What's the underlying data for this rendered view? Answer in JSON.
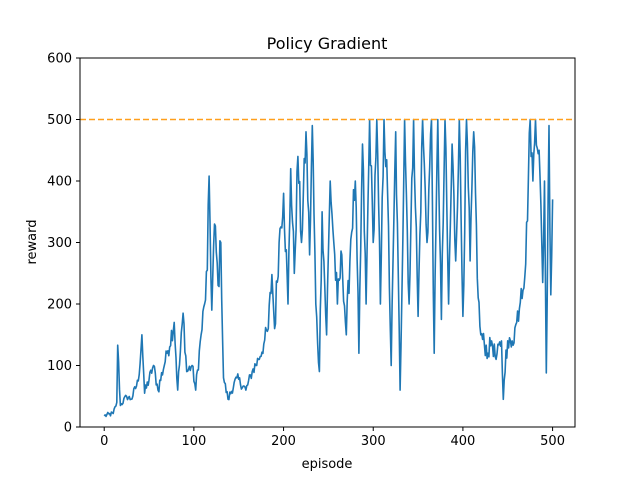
{
  "chart_data": {
    "type": "line",
    "title": "Policy Gradient",
    "xlabel": "episode",
    "ylabel": "reward",
    "xlim": [
      -27,
      525
    ],
    "ylim": [
      0,
      600
    ],
    "xticks": [
      0,
      100,
      200,
      300,
      400,
      500
    ],
    "yticks": [
      0,
      100,
      200,
      300,
      400,
      500,
      600
    ],
    "grid": false,
    "series": [
      {
        "color": "#1f77b4",
        "keypoints": [
          [
            0,
            18
          ],
          [
            10,
            22
          ],
          [
            14,
            40
          ],
          [
            15,
            133
          ],
          [
            18,
            35
          ],
          [
            25,
            50
          ],
          [
            30,
            45
          ],
          [
            38,
            75
          ],
          [
            42,
            150
          ],
          [
            45,
            55
          ],
          [
            55,
            100
          ],
          [
            60,
            60
          ],
          [
            70,
            120
          ],
          [
            78,
            170
          ],
          [
            82,
            60
          ],
          [
            88,
            185
          ],
          [
            92,
            90
          ],
          [
            98,
            100
          ],
          [
            102,
            60
          ],
          [
            108,
            150
          ],
          [
            112,
            200
          ],
          [
            115,
            255
          ],
          [
            117,
            408
          ],
          [
            120,
            190
          ],
          [
            123,
            330
          ],
          [
            127,
            230
          ],
          [
            130,
            300
          ],
          [
            133,
            80
          ],
          [
            138,
            45
          ],
          [
            148,
            80
          ],
          [
            158,
            60
          ],
          [
            165,
            90
          ],
          [
            172,
            110
          ],
          [
            178,
            135
          ],
          [
            183,
            160
          ],
          [
            187,
            248
          ],
          [
            190,
            160
          ],
          [
            195,
            300
          ],
          [
            200,
            380
          ],
          [
            205,
            200
          ],
          [
            208,
            420
          ],
          [
            212,
            250
          ],
          [
            216,
            440
          ],
          [
            220,
            300
          ],
          [
            225,
            480
          ],
          [
            229,
            280
          ],
          [
            232,
            490
          ],
          [
            236,
            200
          ],
          [
            240,
            90
          ],
          [
            243,
            350
          ],
          [
            248,
            150
          ],
          [
            252,
            400
          ],
          [
            256,
            300
          ],
          [
            260,
            200
          ],
          [
            265,
            280
          ],
          [
            270,
            150
          ],
          [
            275,
            305
          ],
          [
            280,
            400
          ],
          [
            284,
            120
          ],
          [
            288,
            460
          ],
          [
            292,
            200
          ],
          [
            296,
            500
          ],
          [
            300,
            300
          ],
          [
            304,
            500
          ],
          [
            308,
            200
          ],
          [
            312,
            500
          ],
          [
            316,
            380
          ],
          [
            320,
            100
          ],
          [
            325,
            480
          ],
          [
            330,
            60
          ],
          [
            335,
            500
          ],
          [
            340,
            200
          ],
          [
            345,
            500
          ],
          [
            350,
            180
          ],
          [
            355,
            500
          ],
          [
            360,
            300
          ],
          [
            365,
            500
          ],
          [
            368,
            120
          ],
          [
            372,
            500
          ],
          [
            376,
            175
          ],
          [
            380,
            500
          ],
          [
            384,
            200
          ],
          [
            388,
            460
          ],
          [
            392,
            270
          ],
          [
            396,
            500
          ],
          [
            400,
            180
          ],
          [
            404,
            500
          ],
          [
            408,
            270
          ],
          [
            412,
            480
          ],
          [
            417,
            210
          ],
          [
            420,
            150
          ],
          [
            428,
            120
          ],
          [
            432,
            140
          ],
          [
            437,
            110
          ],
          [
            443,
            140
          ],
          [
            445,
            45
          ],
          [
            448,
            125
          ],
          [
            455,
            140
          ],
          [
            460,
            170
          ],
          [
            465,
            225
          ],
          [
            470,
            265
          ],
          [
            475,
            500
          ],
          [
            478,
            400
          ],
          [
            481,
            500
          ],
          [
            485,
            450
          ],
          [
            489,
            235
          ],
          [
            491,
            400
          ],
          [
            493,
            88
          ],
          [
            496,
            490
          ],
          [
            498,
            215
          ],
          [
            500,
            370
          ]
        ]
      }
    ],
    "reference_lines": [
      {
        "y": 500,
        "color": "#ff9f1c",
        "style": "dashed"
      }
    ]
  }
}
